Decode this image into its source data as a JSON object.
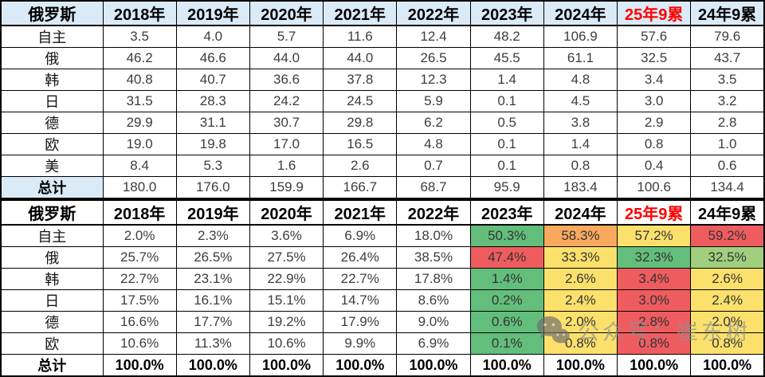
{
  "palette": {
    "header_bg": "#DAEAF6",
    "header_red_text": "#FE0000",
    "g": "#63BE7B",
    "lg": "#A0D07E",
    "y": "#FBE16C",
    "o": "#F9A95D",
    "r": "#EE5C5F"
  },
  "watermark": {
    "icon": "wechat-icon",
    "text": "公众号：崔东树"
  },
  "chart_data": [
    {
      "type": "table",
      "corner_label": "俄罗斯",
      "columns": [
        "2018年",
        "2019年",
        "2020年",
        "2021年",
        "2022年",
        "2023年",
        "2024年",
        "25年9累",
        "24年9累"
      ],
      "red_columns": [
        "25年9累"
      ],
      "rows": [
        {
          "label": "自主",
          "values": [
            "3.5",
            "4.0",
            "5.7",
            "11.6",
            "12.4",
            "48.2",
            "106.9",
            "57.6",
            "79.6"
          ]
        },
        {
          "label": "俄",
          "values": [
            "46.2",
            "46.6",
            "44.0",
            "44.0",
            "26.5",
            "45.5",
            "61.1",
            "32.5",
            "43.7"
          ]
        },
        {
          "label": "韩",
          "values": [
            "40.8",
            "40.7",
            "36.6",
            "37.8",
            "12.3",
            "1.4",
            "4.8",
            "3.4",
            "3.5"
          ]
        },
        {
          "label": "日",
          "values": [
            "31.5",
            "28.3",
            "24.2",
            "24.5",
            "5.9",
            "0.1",
            "4.5",
            "3.0",
            "3.2"
          ]
        },
        {
          "label": "德",
          "values": [
            "29.9",
            "31.1",
            "30.7",
            "29.8",
            "6.2",
            "0.5",
            "3.8",
            "2.9",
            "2.8"
          ]
        },
        {
          "label": "欧",
          "values": [
            "19.0",
            "19.8",
            "17.0",
            "16.5",
            "4.8",
            "0.1",
            "1.4",
            "0.8",
            "1.0"
          ]
        },
        {
          "label": "美",
          "values": [
            "8.4",
            "5.3",
            "1.6",
            "2.6",
            "0.7",
            "0.1",
            "0.8",
            "0.4",
            "0.6"
          ]
        },
        {
          "label": "总计",
          "is_total": true,
          "values": [
            "180.0",
            "176.0",
            "159.9",
            "166.7",
            "68.7",
            "95.9",
            "183.4",
            "100.6",
            "134.4"
          ]
        }
      ]
    },
    {
      "type": "table",
      "corner_label": "俄罗斯",
      "columns": [
        "2018年",
        "2019年",
        "2020年",
        "2021年",
        "2022年",
        "2023年",
        "2024年",
        "25年9累",
        "24年9累"
      ],
      "red_columns": [
        "25年9累"
      ],
      "rows": [
        {
          "label": "自主",
          "values": [
            "2.0%",
            "2.3%",
            "3.6%",
            "6.9%",
            "18.0%",
            "50.3%",
            "58.3%",
            "57.2%",
            "59.2%"
          ],
          "cell_colors": [
            null,
            null,
            null,
            null,
            null,
            "g",
            "o",
            "y",
            "r"
          ]
        },
        {
          "label": "俄",
          "values": [
            "25.7%",
            "26.5%",
            "27.5%",
            "26.4%",
            "38.5%",
            "47.4%",
            "33.3%",
            "32.3%",
            "32.5%"
          ],
          "cell_colors": [
            null,
            null,
            null,
            null,
            null,
            "r",
            "y",
            "g",
            "lg"
          ]
        },
        {
          "label": "韩",
          "values": [
            "22.7%",
            "23.1%",
            "22.9%",
            "22.7%",
            "17.8%",
            "1.4%",
            "2.6%",
            "3.4%",
            "2.6%"
          ],
          "cell_colors": [
            null,
            null,
            null,
            null,
            null,
            "g",
            "y",
            "r",
            "y"
          ]
        },
        {
          "label": "日",
          "values": [
            "17.5%",
            "16.1%",
            "15.1%",
            "14.7%",
            "8.6%",
            "0.2%",
            "2.4%",
            "3.0%",
            "2.4%"
          ],
          "cell_colors": [
            null,
            null,
            null,
            null,
            null,
            "g",
            "y",
            "r",
            "y"
          ]
        },
        {
          "label": "德",
          "values": [
            "16.6%",
            "17.7%",
            "19.2%",
            "17.9%",
            "9.0%",
            "0.6%",
            "2.0%",
            "2.8%",
            "2.0%"
          ],
          "cell_colors": [
            null,
            null,
            null,
            null,
            null,
            "g",
            "y",
            "r",
            "y"
          ]
        },
        {
          "label": "欧",
          "values": [
            "10.6%",
            "11.3%",
            "10.6%",
            "9.9%",
            "6.9%",
            "0.1%",
            "0.8%",
            "0.8%",
            "0.8%"
          ],
          "cell_colors": [
            null,
            null,
            null,
            null,
            null,
            "g",
            "y",
            "r",
            "y"
          ]
        },
        {
          "label": "总计",
          "is_total": true,
          "values": [
            "100.0%",
            "100.0%",
            "100.0%",
            "100.0%",
            "100.0%",
            "100.0%",
            "100.0%",
            "100.0%",
            "100.0%"
          ]
        }
      ]
    }
  ]
}
